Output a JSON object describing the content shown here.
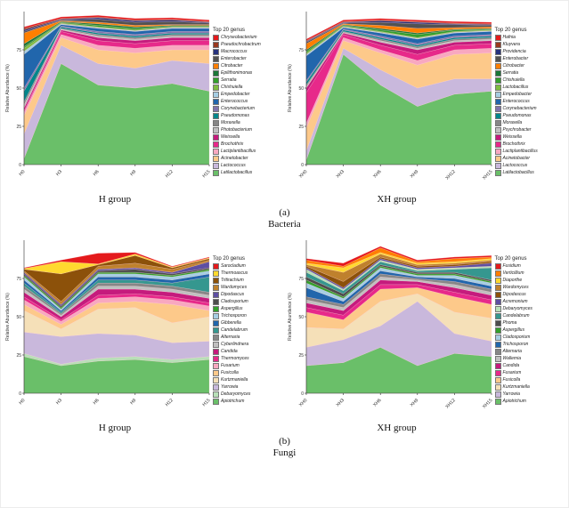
{
  "figure": {
    "caption_a": "(a)",
    "caption_b": "(b)",
    "label_bacteria": "Bacteria",
    "label_fungi": "Fungi"
  },
  "chart_data": [
    {
      "type": "area",
      "panel": "bacteria",
      "group_label": "H group",
      "ylabel": "Relative Abundance (%)",
      "ylim": [
        0,
        100
      ],
      "yticks": [
        0,
        25,
        50,
        75
      ],
      "legend_title": "Top 20 genus",
      "categories": [
        "H0",
        "H3",
        "H6",
        "H9",
        "H12",
        "H15"
      ],
      "series": [
        {
          "name": "Chryseobacterium",
          "color": "#e41a1c",
          "values": [
            1,
            1,
            1,
            1,
            1,
            1
          ]
        },
        {
          "name": "Pseudochrobactrum",
          "color": "#99391f",
          "values": [
            1,
            0.5,
            0.5,
            0.5,
            0.5,
            0.5
          ]
        },
        {
          "name": "Macrococcus",
          "color": "#26327e",
          "values": [
            1,
            0.5,
            1,
            1,
            1,
            0.5
          ]
        },
        {
          "name": "Enterobacter",
          "color": "#525252",
          "values": [
            1,
            0.5,
            2,
            2,
            2,
            1
          ]
        },
        {
          "name": "Citrobacter",
          "color": "#ff7f00",
          "values": [
            7,
            0.5,
            1,
            1,
            0.5,
            0.5
          ]
        },
        {
          "name": "Epilithonimonas",
          "color": "#1b7837",
          "values": [
            2,
            0.5,
            1,
            1,
            0.5,
            0.5
          ]
        },
        {
          "name": "Serratia",
          "color": "#33a02c",
          "values": [
            1,
            0.5,
            1,
            1,
            0.5,
            0.5
          ]
        },
        {
          "name": "Chishuiella",
          "color": "#7fbc41",
          "values": [
            2,
            0.5,
            0.5,
            0.5,
            0.5,
            0.5
          ]
        },
        {
          "name": "Empedobacter",
          "color": "#a6cee3",
          "values": [
            2,
            0.5,
            0.5,
            0.5,
            0.5,
            0.5
          ]
        },
        {
          "name": "Enterococcus",
          "color": "#2166ac",
          "values": [
            22,
            1,
            2,
            2,
            2,
            2
          ]
        },
        {
          "name": "Corynebacterium",
          "color": "#8073ac",
          "values": [
            2,
            0.5,
            1,
            1,
            1,
            1
          ]
        },
        {
          "name": "Pseudomonas",
          "color": "#00868b",
          "values": [
            7,
            1,
            1,
            1,
            1,
            1
          ]
        },
        {
          "name": "Moraxella",
          "color": "#878787",
          "values": [
            2,
            0.5,
            1,
            1,
            1,
            1
          ]
        },
        {
          "name": "Photobacterium",
          "color": "#c0c0c0",
          "values": [
            2,
            0.5,
            1,
            1,
            1,
            1
          ]
        },
        {
          "name": "Weissella",
          "color": "#c51b7d",
          "values": [
            2,
            1,
            2,
            2,
            2,
            2
          ]
        },
        {
          "name": "Brochothrix",
          "color": "#e7298a",
          "values": [
            1,
            2,
            3,
            3,
            3,
            3
          ]
        },
        {
          "name": "Lactiplantibacillus",
          "color": "#f8a8c0",
          "values": [
            2,
            2,
            3,
            3,
            3,
            3
          ]
        },
        {
          "name": "Acinetobacter",
          "color": "#fdc98a",
          "values": [
            12,
            5,
            9,
            10,
            7,
            9
          ]
        },
        {
          "name": "Lactococcus",
          "color": "#c9b8dc",
          "values": [
            16,
            12,
            14,
            13,
            15,
            18
          ]
        },
        {
          "name": "Latilactobacillus",
          "color": "#6abf69",
          "values": [
            4,
            66,
            52,
            50,
            53,
            48
          ]
        }
      ]
    },
    {
      "type": "area",
      "panel": "bacteria",
      "group_label": "XH group",
      "ylabel": "Relative Abundance (%)",
      "ylim": [
        0,
        100
      ],
      "yticks": [
        0,
        25,
        50,
        75
      ],
      "legend_title": "Top 20 genus",
      "categories": [
        "XH0",
        "XH3",
        "XH6",
        "XH9",
        "XH12",
        "XH15"
      ],
      "series": [
        {
          "name": "Hafnia",
          "color": "#e41a1c",
          "values": [
            1,
            1,
            1,
            1,
            1,
            1
          ]
        },
        {
          "name": "Kluyvera",
          "color": "#99391f",
          "values": [
            0.5,
            0.5,
            0.5,
            0.5,
            0.5,
            0.5
          ]
        },
        {
          "name": "Providencia",
          "color": "#26327e",
          "values": [
            0.5,
            0.5,
            1,
            1,
            0.5,
            0.5
          ]
        },
        {
          "name": "Enterobacter",
          "color": "#525252",
          "values": [
            1,
            0.5,
            2,
            3,
            2,
            1
          ]
        },
        {
          "name": "Citrobacter",
          "color": "#ff7f00",
          "values": [
            4,
            0.5,
            2,
            3,
            1,
            1
          ]
        },
        {
          "name": "Serratia",
          "color": "#1b7837",
          "values": [
            1,
            0.5,
            1,
            1,
            0.5,
            0.5
          ]
        },
        {
          "name": "Chishuiella",
          "color": "#33a02c",
          "values": [
            1,
            0.5,
            1,
            2,
            1,
            0.5
          ]
        },
        {
          "name": "Lactobacillus",
          "color": "#7fbc41",
          "values": [
            1,
            0.5,
            0.5,
            0.5,
            0.5,
            0.5
          ]
        },
        {
          "name": "Empedobacter",
          "color": "#a6cee3",
          "values": [
            1,
            0.5,
            0.5,
            0.5,
            0.5,
            0.5
          ]
        },
        {
          "name": "Enterococcus",
          "color": "#2166ac",
          "values": [
            16,
            1,
            2,
            3,
            2,
            2
          ]
        },
        {
          "name": "Corynebacterium",
          "color": "#8073ac",
          "values": [
            1,
            0.5,
            1,
            1,
            1,
            1
          ]
        },
        {
          "name": "Pseudomonas",
          "color": "#00868b",
          "values": [
            2,
            1,
            1,
            1,
            1,
            1
          ]
        },
        {
          "name": "Moraxella",
          "color": "#878787",
          "values": [
            1,
            0.5,
            1,
            1,
            1,
            1
          ]
        },
        {
          "name": "Psychrobacter",
          "color": "#c0c0c0",
          "values": [
            1,
            0.5,
            1,
            1,
            1,
            1
          ]
        },
        {
          "name": "Weissella",
          "color": "#c51b7d",
          "values": [
            3,
            1,
            2,
            3,
            2,
            2
          ]
        },
        {
          "name": "Brochothrix",
          "color": "#e7298a",
          "values": [
            20,
            2,
            3,
            4,
            3,
            3
          ]
        },
        {
          "name": "Lactiplantibacillus",
          "color": "#f8a8c0",
          "values": [
            3,
            2,
            2,
            3,
            3,
            3
          ]
        },
        {
          "name": "Acinetobacter",
          "color": "#fdc98a",
          "values": [
            15,
            5,
            11,
            15,
            16,
            17
          ]
        },
        {
          "name": "Lactococcus",
          "color": "#c9b8dc",
          "values": [
            6,
            4,
            10,
            12,
            10,
            8
          ]
        },
        {
          "name": "Latilactobacillus",
          "color": "#6abf69",
          "values": [
            3,
            72,
            52,
            38,
            46,
            48
          ]
        }
      ]
    },
    {
      "type": "area",
      "panel": "fungi",
      "group_label": "H group",
      "ylabel": "Relative Abundance (%)",
      "ylim": [
        0,
        100
      ],
      "yticks": [
        0,
        25,
        50,
        75
      ],
      "legend_title": "Top 20 genus",
      "categories": [
        "H0",
        "H3",
        "H6",
        "H9",
        "H12",
        "H15"
      ],
      "series": [
        {
          "name": "Sarocladium",
          "color": "#e41a1c",
          "values": [
            0.5,
            1,
            7,
            1,
            0.5,
            0.5
          ]
        },
        {
          "name": "Thermoascus",
          "color": "#ffd92f",
          "values": [
            0.5,
            8,
            0.5,
            1,
            0.5,
            0.5
          ]
        },
        {
          "name": "Tritirachium",
          "color": "#8c510a",
          "values": [
            1,
            18,
            1,
            5,
            1,
            1
          ]
        },
        {
          "name": "Wardomyces",
          "color": "#bf812d",
          "values": [
            1,
            2,
            2,
            3,
            2,
            1
          ]
        },
        {
          "name": "Dipodascus",
          "color": "#5e4fa2",
          "values": [
            1,
            1,
            1,
            1,
            1,
            4
          ]
        },
        {
          "name": "Cladosporium",
          "color": "#4d4d4d",
          "values": [
            1,
            1,
            1,
            2,
            1,
            1
          ]
        },
        {
          "name": "Aspergillus",
          "color": "#33a02c",
          "values": [
            1,
            1,
            1,
            1,
            1,
            1
          ]
        },
        {
          "name": "Trichosporon",
          "color": "#a6cee3",
          "values": [
            2,
            1,
            2,
            2,
            2,
            2
          ]
        },
        {
          "name": "Gibberella",
          "color": "#2166ac",
          "values": [
            2,
            1,
            2,
            2,
            2,
            2
          ]
        },
        {
          "name": "Candelabrum",
          "color": "#35978f",
          "values": [
            2,
            1,
            2,
            2,
            2,
            10
          ]
        },
        {
          "name": "Alternaria",
          "color": "#878787",
          "values": [
            2,
            1,
            2,
            2,
            2,
            2
          ]
        },
        {
          "name": "Cyberlindnera",
          "color": "#c0c0c0",
          "values": [
            2,
            1,
            2,
            2,
            2,
            2
          ]
        },
        {
          "name": "Candida",
          "color": "#c51b7d",
          "values": [
            3,
            2,
            4,
            3,
            3,
            3
          ]
        },
        {
          "name": "Thermomyces",
          "color": "#e7298a",
          "values": [
            2,
            1,
            2,
            2,
            2,
            2
          ]
        },
        {
          "name": "Fusarium",
          "color": "#f8a8c0",
          "values": [
            3,
            2,
            3,
            3,
            3,
            3
          ]
        },
        {
          "name": "Fusicolla",
          "color": "#fdc98a",
          "values": [
            4,
            3,
            4,
            4,
            12,
            4
          ]
        },
        {
          "name": "Kurtzmaniella",
          "color": "#f5e0b8",
          "values": [
            14,
            5,
            16,
            18,
            13,
            16
          ]
        },
        {
          "name": "Yarrowia",
          "color": "#c9b8dc",
          "values": [
            14,
            18,
            16,
            14,
            11,
            10
          ]
        },
        {
          "name": "Debaryomyces",
          "color": "#b8e0b8",
          "values": [
            2,
            1,
            2,
            2,
            2,
            2
          ]
        },
        {
          "name": "Apiotrichum",
          "color": "#6abf69",
          "values": [
            24,
            18,
            21,
            22,
            20,
            22
          ]
        }
      ]
    },
    {
      "type": "area",
      "panel": "fungi",
      "group_label": "XH group",
      "ylabel": "Relative Abundance (%)",
      "ylim": [
        0,
        100
      ],
      "yticks": [
        0,
        25,
        50,
        75
      ],
      "legend_title": "Top 20 genus",
      "categories": [
        "XH0",
        "XH3",
        "XH6",
        "XH9",
        "XH12",
        "XH15"
      ],
      "series": [
        {
          "name": "Fusidium",
          "color": "#e41a1c",
          "values": [
            1,
            2,
            1,
            1,
            1,
            1
          ]
        },
        {
          "name": "Verticillium",
          "color": "#ff7f00",
          "values": [
            2,
            1,
            3,
            1,
            2,
            1
          ]
        },
        {
          "name": "Diaporthe",
          "color": "#ffd92f",
          "values": [
            1,
            3,
            1,
            1,
            1,
            1
          ]
        },
        {
          "name": "Wardomyces",
          "color": "#bf812d",
          "values": [
            1,
            6,
            2,
            1,
            1,
            1
          ]
        },
        {
          "name": "Dipodascus",
          "color": "#8c510a",
          "values": [
            1,
            4,
            1,
            1,
            1,
            1
          ]
        },
        {
          "name": "Acremonium",
          "color": "#5e4fa2",
          "values": [
            1,
            1,
            1,
            1,
            1,
            2
          ]
        },
        {
          "name": "Debaryomyces",
          "color": "#b8e0b8",
          "values": [
            2,
            1,
            1,
            1,
            1,
            1
          ]
        },
        {
          "name": "Candelabrum",
          "color": "#35978f",
          "values": [
            3,
            2,
            2,
            1,
            2,
            8
          ]
        },
        {
          "name": "Phoma",
          "color": "#4d4d4d",
          "values": [
            2,
            2,
            1,
            1,
            1,
            1
          ]
        },
        {
          "name": "Aspergillus",
          "color": "#33a02c",
          "values": [
            2,
            1,
            1,
            1,
            1,
            1
          ]
        },
        {
          "name": "Cladosporium",
          "color": "#a6cee3",
          "values": [
            3,
            2,
            2,
            1,
            2,
            2
          ]
        },
        {
          "name": "Trichosporon",
          "color": "#2166ac",
          "values": [
            6,
            2,
            2,
            1,
            2,
            2
          ]
        },
        {
          "name": "Alternaria",
          "color": "#878787",
          "values": [
            2,
            2,
            2,
            1,
            2,
            2
          ]
        },
        {
          "name": "Wallemia",
          "color": "#c0c0c0",
          "values": [
            2,
            2,
            2,
            1,
            2,
            2
          ]
        },
        {
          "name": "Candida",
          "color": "#c51b7d",
          "values": [
            3,
            3,
            3,
            2,
            3,
            3
          ]
        },
        {
          "name": "Fusarium",
          "color": "#e7298a",
          "values": [
            3,
            3,
            3,
            2,
            3,
            3
          ]
        },
        {
          "name": "Fusicolla",
          "color": "#fdc98a",
          "values": [
            10,
            6,
            8,
            4,
            10,
            9
          ]
        },
        {
          "name": "Kurtzmaniella",
          "color": "#f5e0b8",
          "values": [
            13,
            7,
            16,
            5,
            14,
            15
          ]
        },
        {
          "name": "Yarrowia",
          "color": "#c9b8dc",
          "values": [
            12,
            15,
            14,
            42,
            13,
            10
          ]
        },
        {
          "name": "Apiotrichum",
          "color": "#6abf69",
          "values": [
            18,
            20,
            30,
            18,
            26,
            24
          ]
        }
      ]
    }
  ]
}
